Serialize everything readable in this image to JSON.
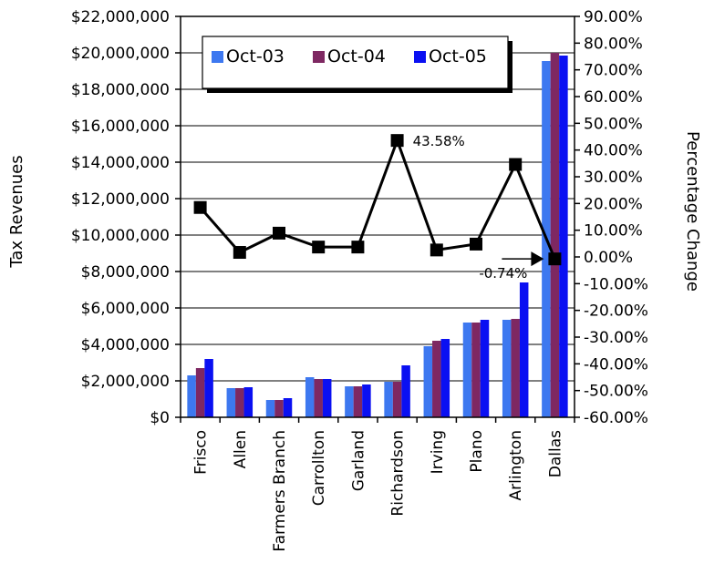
{
  "chart_data": {
    "type": "bar",
    "categories": [
      "Frisco",
      "Allen",
      "Farmers Branch",
      "Carrollton",
      "Garland",
      "Richardson",
      "Irving",
      "Plano",
      "Arlington",
      "Dallas"
    ],
    "series": [
      {
        "name": "Oct-03",
        "color": "#3D78F0",
        "values": [
          2300000,
          1600000,
          950000,
          2200000,
          1700000,
          1950000,
          3900000,
          5200000,
          5350000,
          19550000
        ]
      },
      {
        "name": "Oct-04",
        "color": "#7E2862",
        "values": [
          2700000,
          1600000,
          950000,
          2100000,
          1700000,
          1950000,
          4200000,
          5200000,
          5400000,
          20000000
        ]
      },
      {
        "name": "Oct-05",
        "color": "#0A10F2",
        "values": [
          3200000,
          1650000,
          1050000,
          2100000,
          1800000,
          2850000,
          4300000,
          5350000,
          7400000,
          19850000
        ]
      }
    ],
    "line_series": {
      "name": "Percentage Change",
      "values": [
        18.5,
        1.7,
        8.9,
        3.7,
        3.7,
        43.58,
        2.6,
        4.8,
        34.6,
        -0.74
      ]
    },
    "ylabel": "Tax Revenues",
    "y2label": "Percentage Change",
    "ylim": [
      0,
      22000000
    ],
    "y2lim": [
      -60,
      90
    ],
    "yticks": [
      "$0",
      "$2,000,000",
      "$4,000,000",
      "$6,000,000",
      "$8,000,000",
      "$10,000,000",
      "$12,000,000",
      "$14,000,000",
      "$16,000,000",
      "$18,000,000",
      "$20,000,000",
      "$22,000,000"
    ],
    "y2ticks": [
      "-60.00%",
      "-50.00%",
      "-40.00%",
      "-30.00%",
      "-20.00%",
      "-10.00%",
      "0.00%",
      "10.00%",
      "20.00%",
      "30.00%",
      "40.00%",
      "50.00%",
      "60.00%",
      "70.00%",
      "80.00%",
      "90.00%"
    ],
    "annotations": [
      {
        "text": "43.58%",
        "category": "Richardson"
      },
      {
        "text": "-0.74%",
        "category": "Dallas"
      }
    ],
    "legend_position": "top",
    "grid": true
  }
}
